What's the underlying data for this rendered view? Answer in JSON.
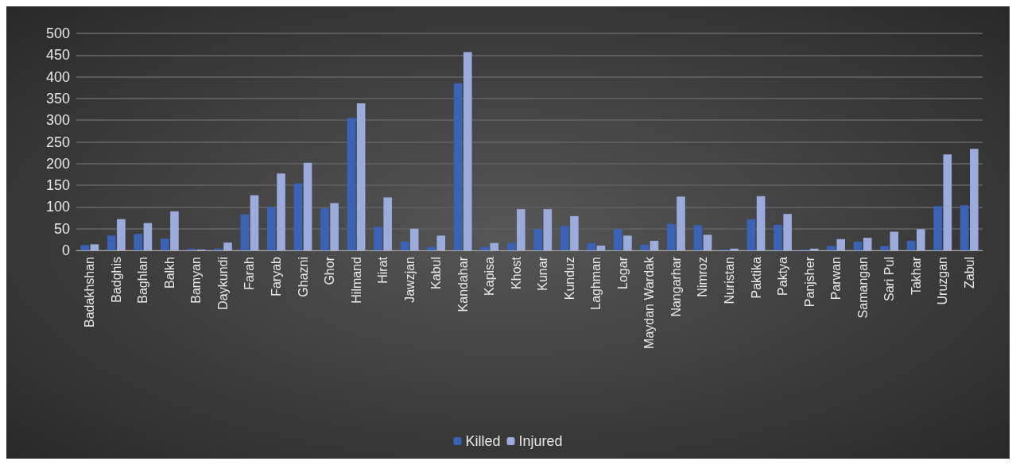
{
  "chart_data": {
    "type": "bar",
    "categories": [
      "Badakhshan",
      "Badghis",
      "Baghlan",
      "Balkh",
      "Bamyan",
      "Daykundi",
      "Farah",
      "Faryab",
      "Ghazni",
      "Ghor",
      "Hilmand",
      "Hirat",
      "Jawzjan",
      "Kabul",
      "Kandahar",
      "Kapisa",
      "Khost",
      "Kunar",
      "Kunduz",
      "Laghman",
      "Logar",
      "Maydan Wardak",
      "Nangarhar",
      "Nimroz",
      "Nuristan",
      "Paktika",
      "Paktya",
      "Panjsher",
      "Parwan",
      "Samangan",
      "Sari Pul",
      "Takhar",
      "Uruzgan",
      "Zabul"
    ],
    "series": [
      {
        "name": "Killed",
        "color": "#3b63b5",
        "values": [
          12,
          34,
          38,
          27,
          4,
          4,
          83,
          100,
          154,
          97,
          305,
          54,
          20,
          8,
          385,
          8,
          17,
          49,
          56,
          17,
          49,
          13,
          61,
          58,
          2,
          72,
          59,
          2,
          10,
          20,
          10,
          22,
          102,
          104
        ]
      },
      {
        "name": "Injured",
        "color": "#9aabdc",
        "values": [
          14,
          72,
          63,
          90,
          2,
          18,
          127,
          177,
          202,
          109,
          339,
          122,
          50,
          34,
          457,
          17,
          95,
          95,
          79,
          11,
          34,
          22,
          124,
          36,
          4,
          125,
          84,
          4,
          26,
          29,
          43,
          49,
          221,
          234
        ]
      }
    ],
    "ylim": [
      0,
      500
    ],
    "yticks": [
      0,
      50,
      100,
      150,
      200,
      250,
      300,
      350,
      400,
      450,
      500
    ],
    "grid": "y",
    "legend": "bottom"
  }
}
